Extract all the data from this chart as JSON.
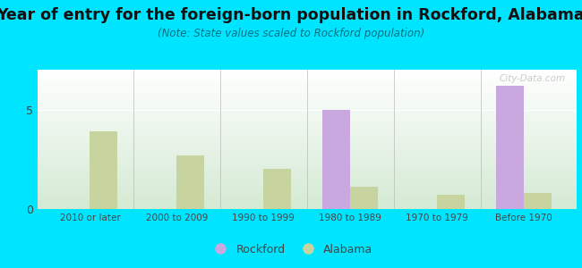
{
  "title": "Year of entry for the foreign-born population in Rockford, Alabama",
  "subtitle": "(Note: State values scaled to Rockford population)",
  "categories": [
    "2010 or later",
    "2000 to 2009",
    "1990 to 1999",
    "1980 to 1989",
    "1970 to 1979",
    "Before 1970"
  ],
  "rockford_values": [
    0,
    0,
    0,
    5.0,
    0,
    6.2
  ],
  "alabama_values": [
    3.9,
    2.7,
    2.0,
    1.1,
    0.7,
    0.8
  ],
  "rockford_color": "#c9a8e0",
  "alabama_color": "#c8d4a0",
  "background_outer": "#00e5ff",
  "ylim": [
    0,
    7
  ],
  "yticks": [
    0,
    5
  ],
  "legend_rockford": "Rockford",
  "legend_alabama": "Alabama",
  "title_fontsize": 12.5,
  "subtitle_fontsize": 8.5,
  "watermark": "City-Data.com",
  "bar_width": 0.32
}
